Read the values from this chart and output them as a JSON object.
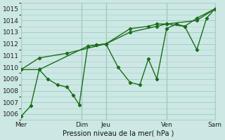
{
  "xlabel": "Pression niveau de la mer( hPa )",
  "background_color": "#cce8e4",
  "grid_color": "#aaccc8",
  "line_color": "#1a6e1a",
  "ylim": [
    1005.5,
    1015.5
  ],
  "yticks": [
    1006,
    1007,
    1008,
    1009,
    1010,
    1011,
    1012,
    1013,
    1014,
    1015
  ],
  "xlim": [
    0,
    16
  ],
  "xtick_positions": [
    0,
    5,
    7,
    12,
    16
  ],
  "xtick_labels": [
    "Mer",
    "Dim",
    "Jeu",
    "Ven",
    "Sam"
  ],
  "vline_positions": [
    0,
    5,
    7,
    12,
    16
  ],
  "line1_x": [
    0,
    0.8,
    1.5,
    2.2,
    3.0,
    3.8,
    4.3,
    4.8,
    5.5,
    6.2,
    7.0,
    8.0,
    9.0,
    9.8,
    10.5,
    11.2,
    12.0,
    12.8,
    13.5,
    14.5,
    15.3,
    16.0
  ],
  "line1_y": [
    1005.8,
    1006.7,
    1009.8,
    1009.0,
    1008.5,
    1008.3,
    1007.6,
    1006.8,
    1011.8,
    1011.9,
    1012.0,
    1010.0,
    1008.7,
    1008.5,
    1010.7,
    1009.0,
    1013.3,
    1013.7,
    1013.5,
    1011.5,
    1014.2,
    1015.0
  ],
  "line2_x": [
    0,
    1.5,
    5.5,
    6.2,
    7.0,
    9.0,
    10.5,
    11.2,
    12.0,
    13.5,
    14.5,
    16.0
  ],
  "line2_y": [
    1009.8,
    1009.8,
    1011.8,
    1011.9,
    1012.0,
    1013.3,
    1013.5,
    1013.7,
    1013.7,
    1013.5,
    1014.2,
    1015.0
  ],
  "line3_x": [
    0,
    1.5,
    3.8,
    7.0,
    9.0,
    11.2,
    12.0,
    14.5,
    16.0
  ],
  "line3_y": [
    1009.8,
    1010.8,
    1011.2,
    1012.0,
    1013.0,
    1013.5,
    1013.7,
    1014.0,
    1015.0
  ]
}
